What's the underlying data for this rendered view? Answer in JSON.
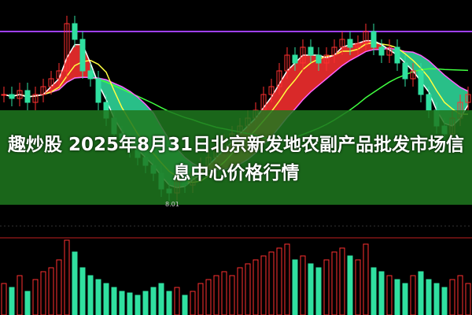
{
  "title": "趣炒股 2025年8月31日北京新发地农副产品批发市场信息中心价格行情",
  "chart_data": {
    "type": "candlestick",
    "low_label": "8.01",
    "closes": [
      9.3,
      9.25,
      9.35,
      9.2,
      9.3,
      9.4,
      9.5,
      9.6,
      10.2,
      10.0,
      9.6,
      9.5,
      9.2,
      9.0,
      8.8,
      8.7,
      8.6,
      8.5,
      8.4,
      8.3,
      8.1,
      8.05,
      8.2,
      8.15,
      8.3,
      8.4,
      8.5,
      8.6,
      8.7,
      8.8,
      8.9,
      9.0,
      9.1,
      9.3,
      9.4,
      9.6,
      9.8,
      9.7,
      9.9,
      9.8,
      9.7,
      9.8,
      9.9,
      10.0,
      9.9,
      9.95,
      10.1,
      9.9,
      9.8,
      9.9,
      9.7,
      9.5,
      9.6,
      9.3,
      9.1,
      8.9,
      8.8,
      9.0,
      9.2,
      9.3
    ],
    "volumes": [
      40,
      35,
      50,
      30,
      45,
      55,
      60,
      70,
      95,
      80,
      60,
      50,
      45,
      40,
      35,
      30,
      28,
      25,
      30,
      35,
      40,
      30,
      35,
      25,
      30,
      40,
      45,
      50,
      55,
      50,
      60,
      65,
      70,
      75,
      80,
      85,
      90,
      70,
      75,
      65,
      60,
      70,
      80,
      85,
      75,
      70,
      90,
      60,
      55,
      50,
      45,
      40,
      50,
      55,
      45,
      40,
      35,
      45,
      50,
      40
    ],
    "colors": {
      "up": "#ff3030",
      "down": "#30e0a0",
      "ma5": "#ffffff",
      "ma10": "#ffff40",
      "ma20": "#ff60ff",
      "ma60": "#40ff40",
      "flat": "#a040ff"
    }
  }
}
